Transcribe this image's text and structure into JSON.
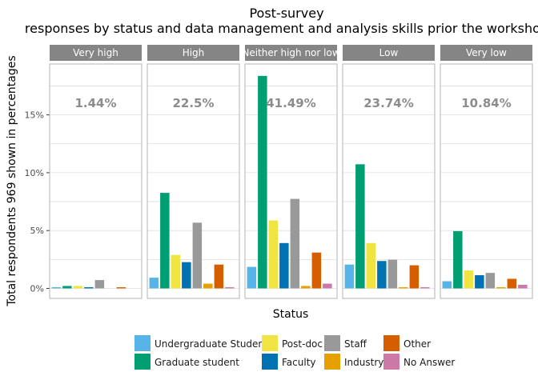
{
  "chart_data": {
    "type": "bar",
    "title_line1": "Post-survey",
    "title_line2": "responses by status and data management and analysis skills prior the workshop",
    "xlabel": "Status",
    "ylabel": "Total respondents 969 shown in percentages",
    "ylim": [
      0,
      20
    ],
    "yticks": [
      0,
      5,
      10,
      15
    ],
    "ytick_labels": [
      "0%",
      "5%",
      "10%",
      "15%"
    ],
    "grid": true,
    "legend_position": "bottom",
    "statuses": [
      "Undergraduate Student",
      "Graduate student",
      "Post-doc",
      "Faculty",
      "Staff",
      "Industry",
      "Other",
      "No Answer"
    ],
    "colors": [
      "#56B4E9",
      "#009E73",
      "#F0E442",
      "#0072B2",
      "#999999",
      "#E69F00",
      "#D55E00",
      "#CC79A7"
    ],
    "panels": [
      {
        "label": "Very high",
        "total": "1.44%",
        "values": [
          0.1,
          0.21,
          0.21,
          0.1,
          0.72,
          0,
          0.1,
          0
        ]
      },
      {
        "label": "High",
        "total": "22.5%",
        "values": [
          0.93,
          8.26,
          2.89,
          2.27,
          5.68,
          0.41,
          2.06,
          0.1
        ]
      },
      {
        "label": "Neither high nor low",
        "total": "41.49%",
        "values": [
          1.86,
          18.37,
          5.88,
          3.92,
          7.74,
          0.21,
          3.1,
          0.41
        ]
      },
      {
        "label": "Low",
        "total": "23.74%",
        "values": [
          2.06,
          10.73,
          3.92,
          2.37,
          2.48,
          0.1,
          2.0,
          0.1
        ]
      },
      {
        "label": "Very low",
        "total": "10.84%",
        "values": [
          0.62,
          4.95,
          1.55,
          1.14,
          1.34,
          0.1,
          0.83,
          0.31
        ]
      }
    ]
  }
}
